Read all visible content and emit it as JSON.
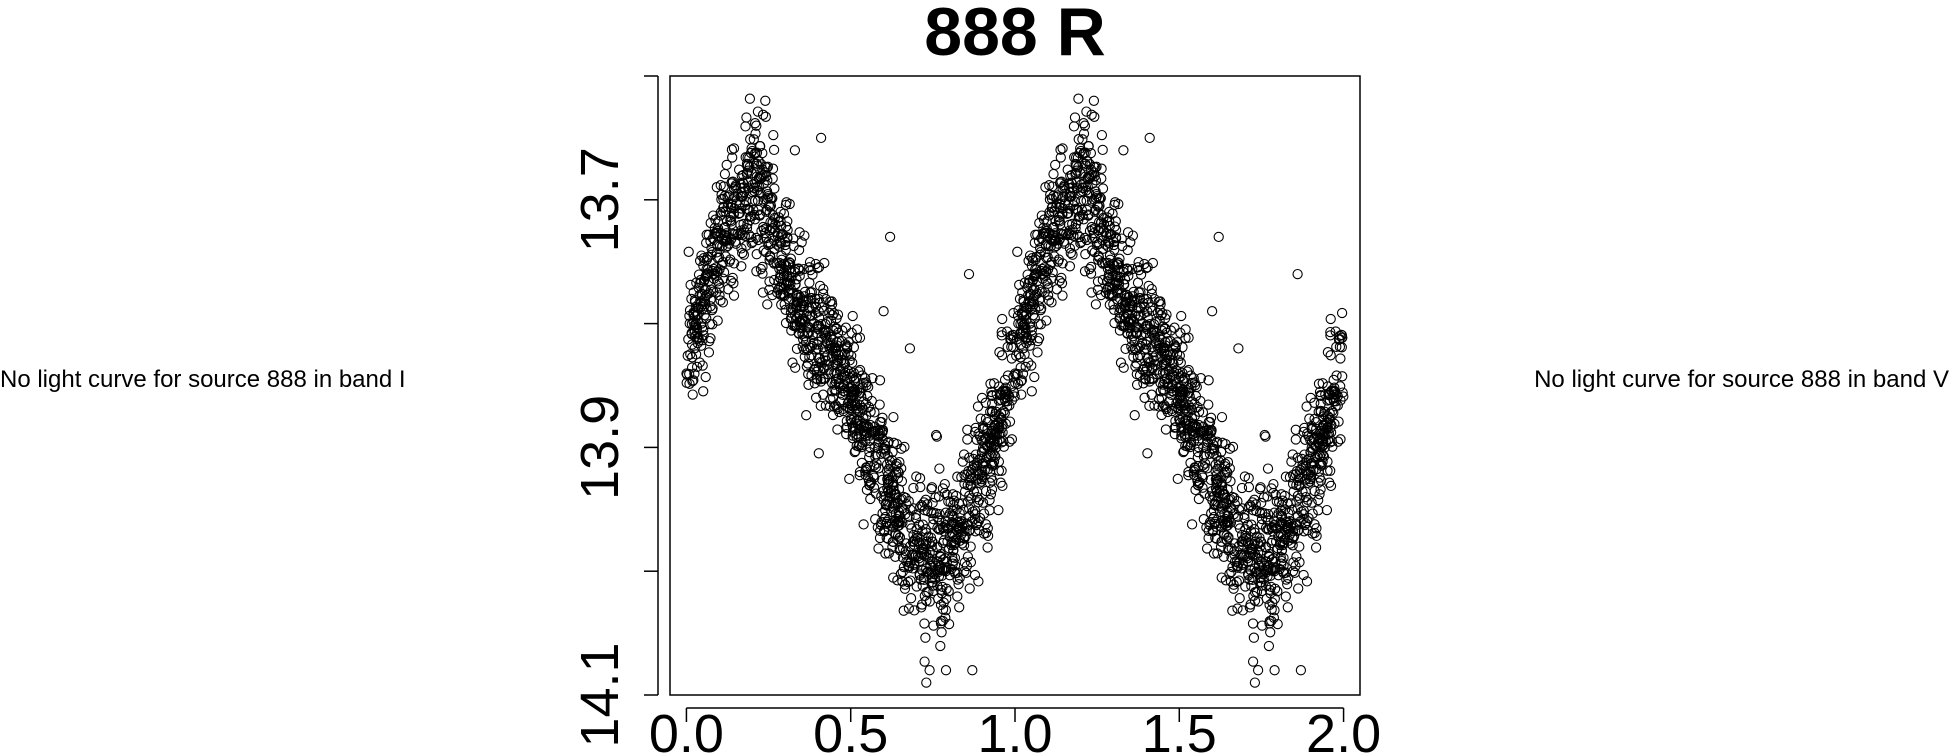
{
  "messages": {
    "left": "No light curve for source 888 in band I",
    "right": "No light curve for source 888 in band V"
  },
  "chart_data": {
    "type": "scatter",
    "title": "888 R",
    "xlabel": "",
    "ylabel": "",
    "xlim": [
      -0.05,
      2.05
    ],
    "ylim": [
      14.1,
      13.6
    ],
    "y_reversed": true,
    "x_ticks": [
      "0.0",
      "0.5",
      "1.0",
      "1.5",
      "2.0"
    ],
    "y_ticks": [
      "13.7",
      "13.9",
      "14.1"
    ],
    "y_minor_ticks": [
      13.6,
      13.8,
      14.0
    ],
    "grid": false,
    "legend": "none",
    "marker": "open-circle",
    "marker_color": "#000000",
    "phase_folded": true,
    "phase_profile": [
      [
        0.0,
        13.82
      ],
      [
        0.05,
        13.78
      ],
      [
        0.1,
        13.74
      ],
      [
        0.15,
        13.71
      ],
      [
        0.2,
        13.69
      ],
      [
        0.25,
        13.71
      ],
      [
        0.3,
        13.75
      ],
      [
        0.35,
        13.79
      ],
      [
        0.4,
        13.81
      ],
      [
        0.45,
        13.83
      ],
      [
        0.5,
        13.86
      ],
      [
        0.55,
        13.89
      ],
      [
        0.6,
        13.92
      ],
      [
        0.65,
        13.96
      ],
      [
        0.7,
        13.98
      ],
      [
        0.75,
        14.0
      ],
      [
        0.8,
        13.98
      ],
      [
        0.85,
        13.95
      ],
      [
        0.9,
        13.92
      ],
      [
        0.95,
        13.88
      ],
      [
        1.0,
        13.82
      ]
    ],
    "scatter_sigma": 0.028,
    "n_points_per_cycle": 1600,
    "outliers": [
      [
        0.24,
        13.62
      ],
      [
        0.1,
        13.73
      ],
      [
        0.62,
        13.73
      ],
      [
        0.86,
        13.76
      ],
      [
        0.73,
        14.09
      ],
      [
        0.79,
        14.08
      ],
      [
        0.45,
        13.84
      ],
      [
        0.6,
        13.79
      ],
      [
        0.41,
        13.65
      ],
      [
        0.33,
        13.66
      ],
      [
        0.87,
        14.08
      ],
      [
        0.74,
        14.08
      ],
      [
        0.76,
        13.89
      ],
      [
        0.68,
        13.82
      ],
      [
        0.9,
        13.86
      ]
    ]
  }
}
